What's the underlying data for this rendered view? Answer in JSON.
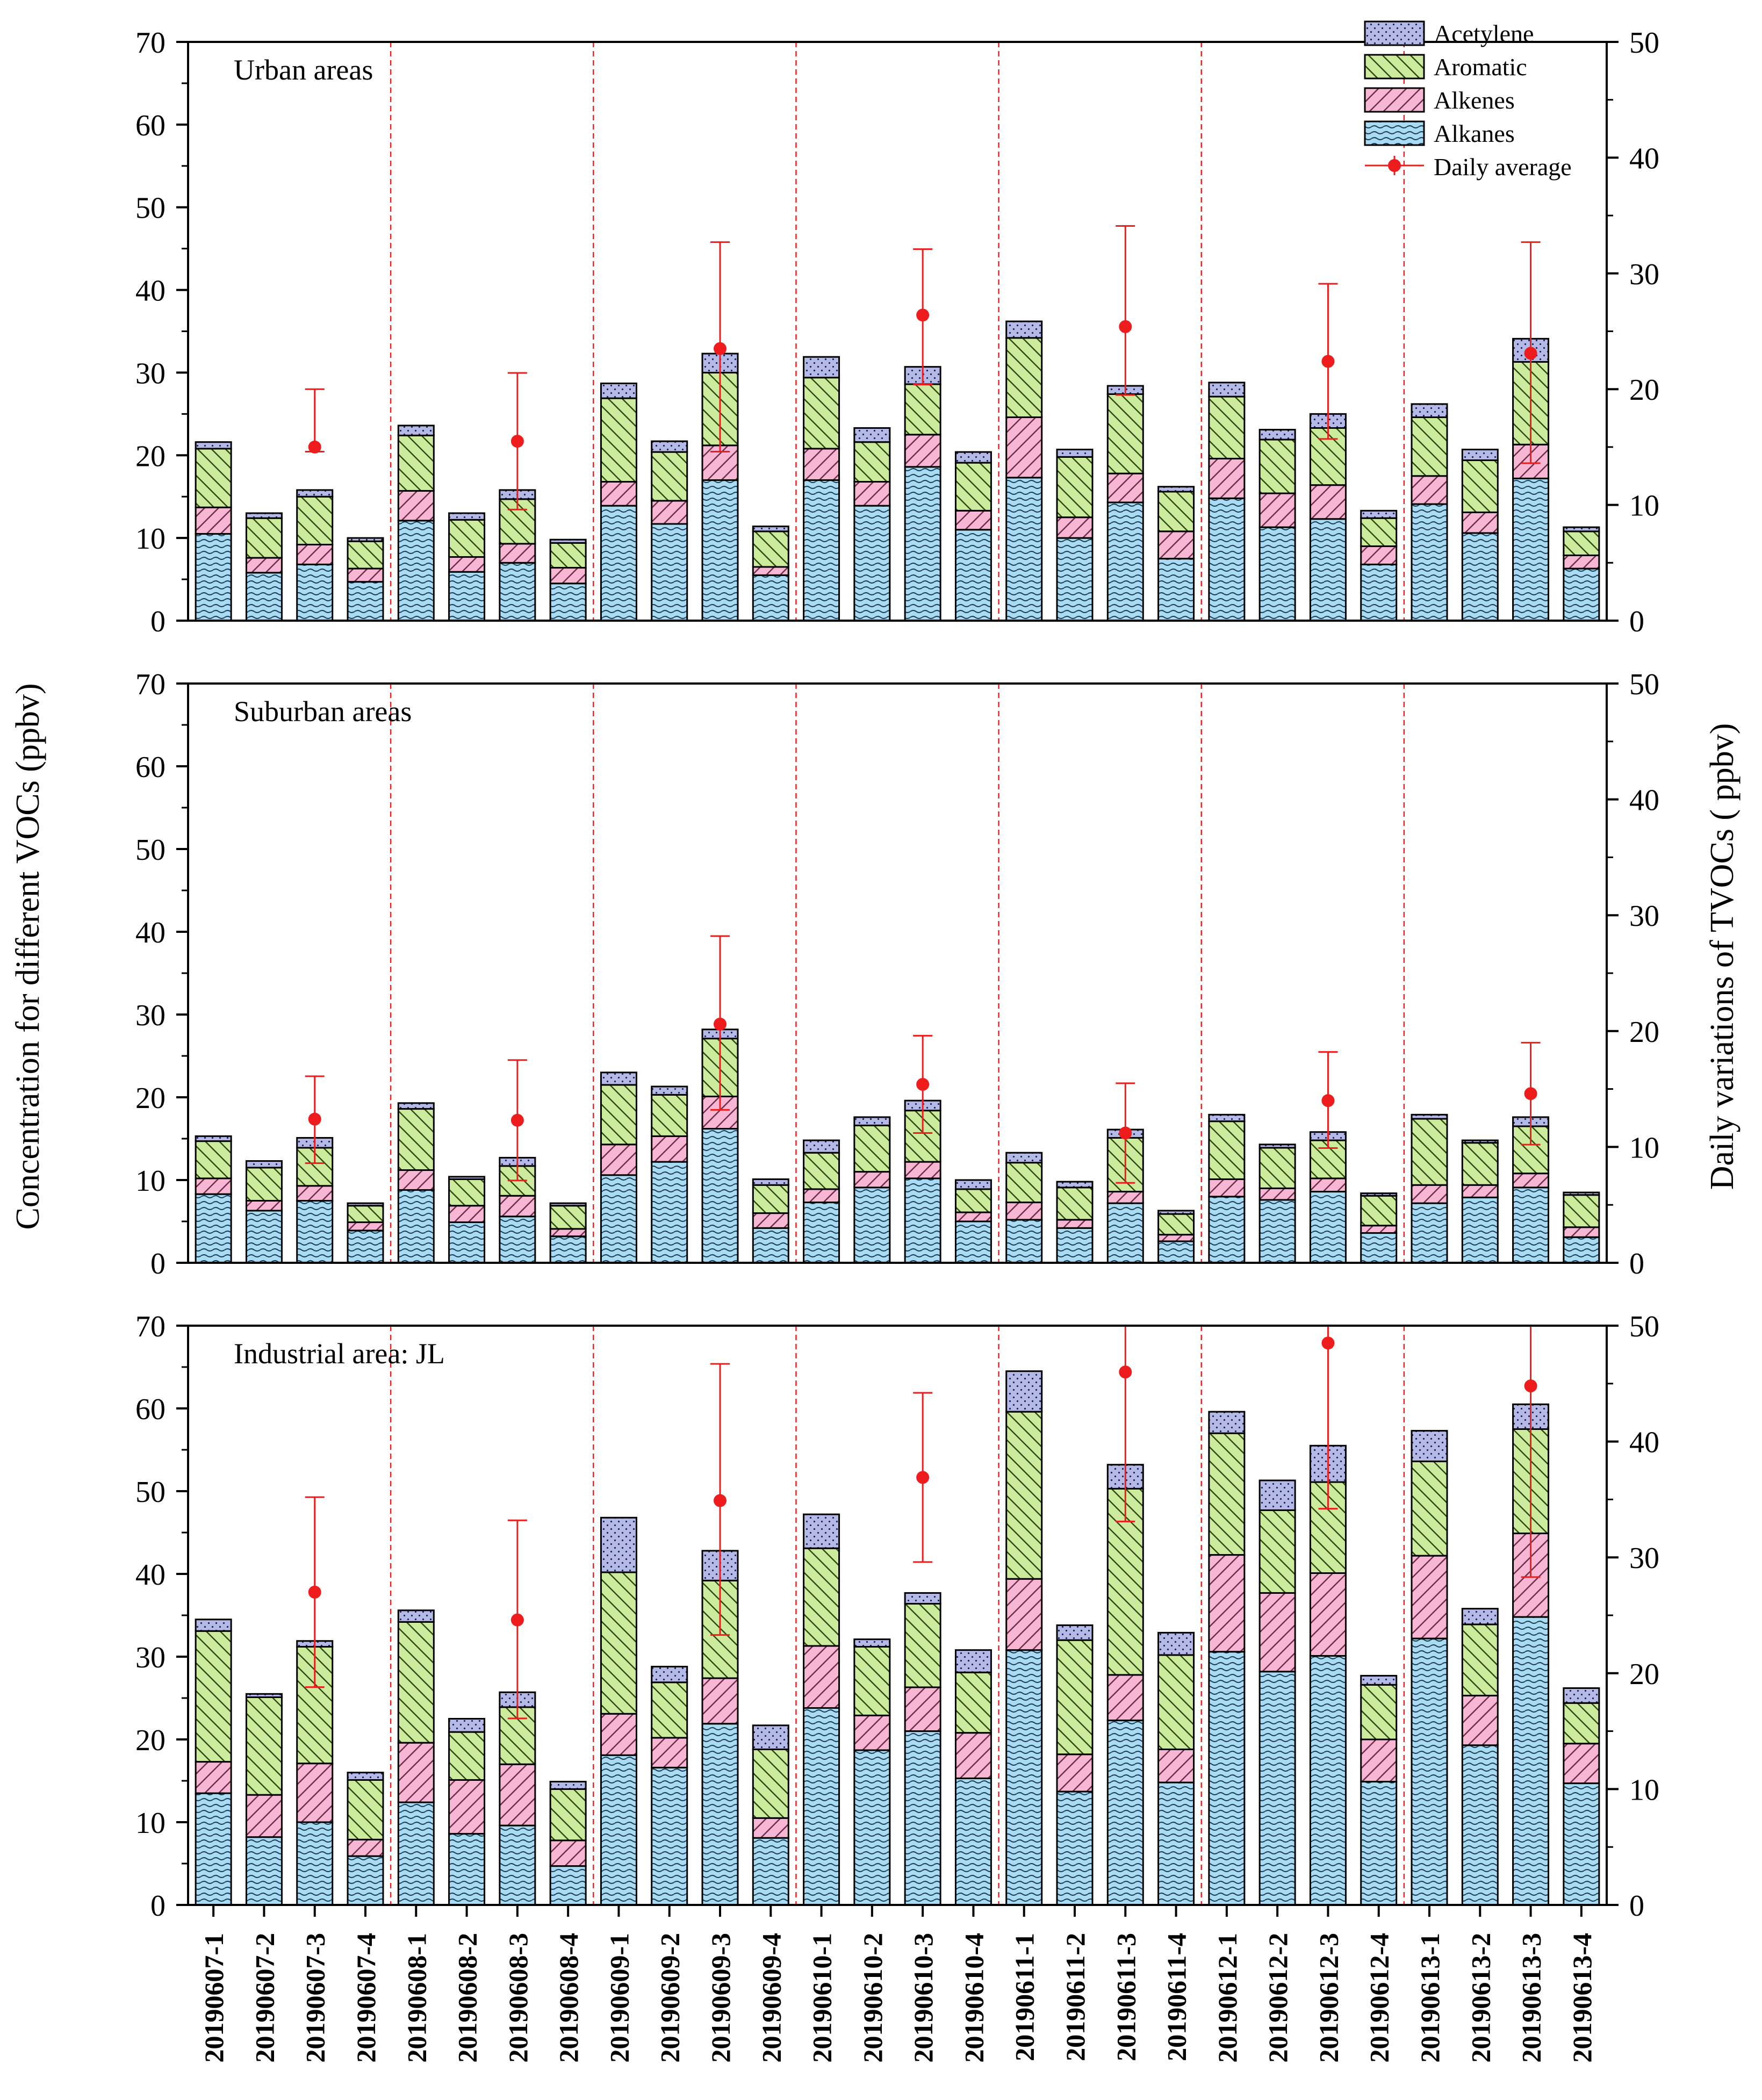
{
  "chart_data": {
    "type": "bar",
    "stacked": true,
    "ylabel_left": "Concentration for different VOCs (ppbv)",
    "ylabel_right": "Daily variations of TVOCs ( ppbv)",
    "left_ylim": [
      0,
      70
    ],
    "right_ylim": [
      0,
      50
    ],
    "left_ticks": [
      "0",
      "10",
      "20",
      "30",
      "40",
      "50",
      "60",
      "70"
    ],
    "right_ticks": [
      "0",
      "10",
      "20",
      "30",
      "40",
      "50"
    ],
    "categories": [
      "20190607-1",
      "20190607-2",
      "20190607-3",
      "20190607-4",
      "20190608-1",
      "20190608-2",
      "20190608-3",
      "20190608-4",
      "20190609-1",
      "20190609-2",
      "20190609-3",
      "20190609-4",
      "20190610-1",
      "20190610-2",
      "20190610-3",
      "20190610-4",
      "20190611-1",
      "20190611-2",
      "20190611-3",
      "20190611-4",
      "20190612-1",
      "20190612-2",
      "20190612-3",
      "20190612-4",
      "20190613-1",
      "20190613-2",
      "20190613-3",
      "20190613-4"
    ],
    "legend": [
      {
        "key": "acetylene",
        "label": "Acetylene",
        "color": "#b4b9e6"
      },
      {
        "key": "aromatic",
        "label": "Aromatic",
        "color": "#cdeb9c"
      },
      {
        "key": "alkenes",
        "label": "Alkenes",
        "color": "#f7b7d4"
      },
      {
        "key": "alkanes",
        "label": "Alkanes",
        "color": "#a9dcf2"
      },
      {
        "key": "daily",
        "label": "Daily average",
        "color": "#ee1c1c"
      }
    ],
    "panels": [
      {
        "title": "Urban areas",
        "series": [
          {
            "name": "Alkanes",
            "values": [
              10.5,
              5.8,
              6.8,
              4.7,
              12.1,
              5.9,
              7.0,
              4.5,
              13.9,
              11.7,
              17.0,
              5.5,
              17.0,
              13.9,
              18.6,
              11.0,
              17.3,
              10.0,
              14.3,
              7.5,
              14.8,
              11.3,
              12.3,
              6.8,
              14.1,
              10.6,
              17.2,
              6.3
            ]
          },
          {
            "name": "Alkenes",
            "values": [
              3.2,
              1.8,
              2.4,
              1.6,
              3.6,
              1.8,
              2.3,
              1.9,
              2.9,
              2.8,
              4.2,
              1.0,
              3.8,
              2.9,
              3.9,
              2.3,
              7.3,
              2.5,
              3.5,
              3.3,
              4.8,
              4.1,
              4.1,
              2.2,
              3.4,
              2.5,
              4.1,
              1.6
            ]
          },
          {
            "name": "Aromatic",
            "values": [
              7.1,
              4.8,
              5.8,
              3.3,
              6.7,
              4.5,
              5.4,
              3.0,
              10.1,
              5.9,
              8.8,
              4.3,
              8.6,
              4.8,
              6.1,
              5.8,
              9.6,
              7.3,
              9.6,
              4.8,
              7.5,
              6.5,
              6.9,
              3.4,
              7.1,
              6.3,
              10.0,
              2.9
            ]
          },
          {
            "name": "Acetylene",
            "values": [
              0.8,
              0.6,
              0.8,
              0.4,
              1.2,
              0.8,
              1.1,
              0.4,
              1.8,
              1.3,
              2.3,
              0.6,
              2.5,
              1.7,
              2.1,
              1.3,
              2.0,
              0.9,
              1.0,
              0.6,
              1.7,
              1.2,
              1.7,
              0.9,
              1.6,
              1.3,
              2.8,
              0.5
            ]
          }
        ],
        "daily_average": [
          {
            "category": "20190607-3",
            "value": 15.0,
            "err_low": 14.6,
            "err_high": 20.0
          },
          {
            "category": "20190608-3",
            "value": 15.5,
            "err_low": 9.6,
            "err_high": 21.4
          },
          {
            "category": "20190609-3",
            "value": 23.5,
            "err_low": 14.6,
            "err_high": 32.7
          },
          {
            "category": "20190610-3",
            "value": 26.4,
            "err_low": 20.4,
            "err_high": 32.1
          },
          {
            "category": "20190611-3",
            "value": 25.4,
            "err_low": 19.5,
            "err_high": 34.1
          },
          {
            "category": "20190612-3",
            "value": 22.4,
            "err_low": 15.7,
            "err_high": 29.1
          },
          {
            "category": "20190613-3",
            "value": 23.1,
            "err_low": 13.6,
            "err_high": 32.7
          }
        ]
      },
      {
        "title": "Suburban areas",
        "series": [
          {
            "name": "Alkanes",
            "values": [
              8.3,
              6.3,
              7.5,
              3.9,
              8.8,
              4.9,
              5.6,
              3.2,
              10.6,
              12.2,
              16.2,
              4.2,
              7.3,
              9.1,
              10.2,
              5.0,
              5.2,
              4.2,
              7.2,
              2.6,
              8.0,
              7.6,
              8.6,
              3.6,
              7.2,
              7.9,
              9.1,
              3.1
            ]
          },
          {
            "name": "Alkenes",
            "values": [
              1.9,
              1.2,
              1.8,
              1.0,
              2.4,
              2.0,
              2.5,
              0.9,
              3.7,
              3.1,
              3.9,
              1.8,
              1.6,
              1.9,
              2.0,
              1.1,
              2.1,
              1.0,
              1.4,
              0.8,
              2.1,
              1.4,
              1.6,
              0.9,
              2.2,
              1.5,
              1.7,
              1.2
            ]
          },
          {
            "name": "Aromatic",
            "values": [
              4.5,
              4.0,
              4.6,
              2.0,
              7.4,
              3.2,
              3.6,
              2.8,
              7.2,
              5.0,
              7.0,
              3.4,
              4.4,
              5.6,
              6.2,
              2.8,
              4.8,
              3.9,
              6.5,
              2.5,
              7.0,
              4.9,
              4.6,
              3.6,
              8.0,
              5.1,
              5.7,
              3.9
            ]
          },
          {
            "name": "Acetylene",
            "values": [
              0.6,
              0.8,
              1.2,
              0.3,
              0.7,
              0.3,
              1.0,
              0.3,
              1.5,
              1.0,
              1.1,
              0.7,
              1.5,
              1.0,
              1.2,
              1.1,
              1.2,
              0.7,
              1.0,
              0.4,
              0.8,
              0.4,
              1.0,
              0.3,
              0.5,
              0.3,
              1.1,
              0.3
            ]
          }
        ],
        "daily_average": [
          {
            "category": "20190607-3",
            "value": 12.4,
            "err_low": 8.6,
            "err_high": 16.1
          },
          {
            "category": "20190608-3",
            "value": 12.3,
            "err_low": 7.1,
            "err_high": 17.5
          },
          {
            "category": "20190609-3",
            "value": 20.6,
            "err_low": 13.2,
            "err_high": 28.2
          },
          {
            "category": "20190610-3",
            "value": 15.4,
            "err_low": 11.2,
            "err_high": 19.6
          },
          {
            "category": "20190611-3",
            "value": 11.2,
            "err_low": 6.9,
            "err_high": 15.5
          },
          {
            "category": "20190612-3",
            "value": 14.0,
            "err_low": 9.9,
            "err_high": 18.2
          },
          {
            "category": "20190613-3",
            "value": 14.6,
            "err_low": 10.2,
            "err_high": 19.0
          }
        ]
      },
      {
        "title": "Industrial area: JL",
        "series": [
          {
            "name": "Alkanes",
            "values": [
              13.5,
              8.2,
              10.0,
              5.9,
              12.4,
              8.6,
              9.6,
              4.7,
              18.1,
              16.6,
              21.9,
              8.1,
              23.8,
              18.7,
              21.0,
              15.3,
              30.8,
              13.7,
              22.3,
              14.8,
              30.6,
              28.2,
              30.1,
              14.9,
              32.2,
              19.3,
              34.8,
              14.7
            ]
          },
          {
            "name": "Alkenes",
            "values": [
              3.8,
              5.1,
              7.1,
              2.0,
              7.2,
              6.5,
              7.4,
              3.1,
              5.0,
              3.6,
              5.5,
              2.4,
              7.5,
              4.2,
              5.3,
              5.5,
              8.6,
              4.5,
              5.5,
              4.0,
              11.7,
              9.5,
              10.0,
              5.1,
              10.0,
              6.0,
              10.1,
              4.8
            ]
          },
          {
            "name": "Aromatic",
            "values": [
              15.8,
              11.8,
              14.1,
              7.2,
              14.6,
              5.8,
              6.9,
              6.2,
              17.1,
              6.7,
              11.8,
              8.3,
              11.8,
              8.3,
              10.1,
              7.3,
              20.2,
              13.8,
              22.5,
              11.4,
              14.7,
              10.0,
              11.0,
              6.6,
              11.4,
              8.6,
              12.6,
              4.9
            ]
          },
          {
            "name": "Acetylene",
            "values": [
              1.4,
              0.4,
              0.7,
              0.9,
              1.4,
              1.6,
              1.8,
              0.9,
              6.6,
              1.9,
              3.6,
              2.9,
              4.1,
              0.9,
              1.3,
              2.7,
              4.9,
              1.8,
              2.9,
              2.7,
              2.6,
              3.6,
              4.4,
              1.1,
              3.7,
              1.9,
              3.0,
              1.8
            ]
          }
        ],
        "daily_average": [
          {
            "category": "20190607-3",
            "value": 27.0,
            "err_low": 18.8,
            "err_high": 35.2
          },
          {
            "category": "20190608-3",
            "value": 24.6,
            "err_low": 16.1,
            "err_high": 33.2
          },
          {
            "category": "20190609-3",
            "value": 34.9,
            "err_low": 23.3,
            "err_high": 46.7
          },
          {
            "category": "20190610-3",
            "value": 36.9,
            "err_low": 29.6,
            "err_high": 44.2
          },
          {
            "category": "20190611-3",
            "value": 46.0,
            "err_low": 33.1,
            "err_high": 50.0
          },
          {
            "category": "20190612-3",
            "value": 48.5,
            "err_low": 34.2,
            "err_high": 50.0
          },
          {
            "category": "20190613-3",
            "value": 44.8,
            "err_low": 28.3,
            "err_high": 50.0
          }
        ]
      }
    ]
  }
}
